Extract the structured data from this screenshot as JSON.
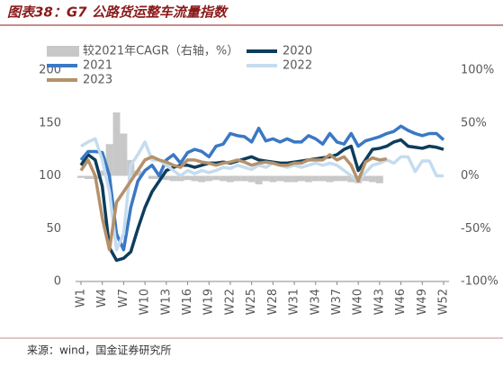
{
  "chart_data": {
    "type": "line",
    "title": "图表38：G7 公路货运整车流量指数",
    "source": "来源：wind，国金证券研究所",
    "categories": [
      "W1",
      null,
      null,
      "W4",
      null,
      null,
      "W7",
      null,
      null,
      "W10",
      null,
      null,
      "W13",
      null,
      null,
      "W16",
      null,
      null,
      "W19",
      null,
      null,
      "W22",
      null,
      null,
      "W25",
      null,
      null,
      "W28",
      null,
      null,
      "W31",
      null,
      null,
      "W34",
      null,
      null,
      "W37",
      null,
      null,
      "W40",
      null,
      null,
      "W43",
      null,
      null,
      "W46",
      null,
      null,
      "W49",
      null,
      null,
      "W52"
    ],
    "ylim": [
      0,
      200
    ],
    "yticks": [
      0,
      50,
      100,
      150,
      200
    ],
    "y2lim": [
      -100,
      100
    ],
    "y2ticks": [
      {
        "value": -100,
        "label": "-100%"
      },
      {
        "value": -50,
        "label": "-50%"
      },
      {
        "value": 0,
        "label": "0%"
      },
      {
        "value": 50,
        "label": "50%"
      },
      {
        "value": 100,
        "label": "100%"
      }
    ],
    "series": [
      {
        "name": "较2021年CAGR（右轴，%）",
        "type": "area",
        "axis": "y2",
        "color": "#c8c8c8",
        "values": [
          -2,
          -3,
          -3,
          5,
          30,
          60,
          40,
          15,
          5,
          0,
          -3,
          -3,
          -4,
          -5,
          -5,
          -4,
          -5,
          -6,
          -5,
          -4,
          -5,
          -6,
          -5,
          -5,
          -6,
          -8,
          -5,
          -6,
          -5,
          -6,
          -6,
          -5,
          -6,
          -5,
          -5,
          -6,
          -5,
          -5,
          -6,
          -7,
          -5,
          -6,
          -7,
          null,
          null,
          null,
          null,
          null,
          null,
          null,
          null,
          null
        ]
      },
      {
        "name": "2020",
        "color": "#0d3d5c",
        "values": [
          110,
          120,
          115,
          90,
          32,
          20,
          22,
          28,
          50,
          70,
          85,
          95,
          105,
          108,
          110,
          110,
          108,
          110,
          112,
          112,
          113,
          112,
          114,
          116,
          118,
          115,
          114,
          113,
          112,
          112,
          113,
          114,
          115,
          116,
          117,
          118,
          120,
          125,
          128,
          105,
          115,
          125,
          126,
          128,
          132,
          134,
          128,
          127,
          126,
          128,
          127,
          125
        ]
      },
      {
        "name": "2021",
        "color": "#3a78c4",
        "values": [
          115,
          123,
          123,
          122,
          100,
          45,
          30,
          70,
          95,
          105,
          110,
          100,
          115,
          120,
          112,
          122,
          125,
          123,
          118,
          128,
          130,
          140,
          138,
          137,
          132,
          145,
          133,
          135,
          132,
          135,
          132,
          132,
          138,
          135,
          130,
          140,
          132,
          130,
          140,
          128,
          133,
          135,
          137,
          140,
          142,
          147,
          143,
          140,
          138,
          140,
          140,
          134
        ]
      },
      {
        "name": "2022",
        "color": "#c5dcef",
        "values": [
          128,
          132,
          135,
          115,
          85,
          30,
          45,
          110,
          120,
          132,
          115,
          115,
          110,
          105,
          100,
          105,
          102,
          105,
          103,
          105,
          108,
          107,
          110,
          108,
          106,
          110,
          108,
          112,
          110,
          108,
          110,
          108,
          110,
          112,
          110,
          112,
          110,
          105,
          100,
          95,
          103,
          110,
          112,
          115,
          112,
          118,
          118,
          104,
          114,
          114,
          100,
          100
        ]
      },
      {
        "name": "2023",
        "color": "#b5916a",
        "values": [
          105,
          115,
          100,
          60,
          30,
          75,
          85,
          95,
          105,
          115,
          118,
          115,
          113,
          110,
          108,
          115,
          115,
          113,
          112,
          110,
          112,
          113,
          115,
          113,
          110,
          112,
          113,
          112,
          110,
          110,
          112,
          112,
          115,
          115,
          115,
          120,
          115,
          118,
          110,
          95,
          113,
          117,
          115,
          116,
          null,
          null,
          null,
          null,
          null,
          null,
          null,
          null
        ]
      }
    ]
  }
}
